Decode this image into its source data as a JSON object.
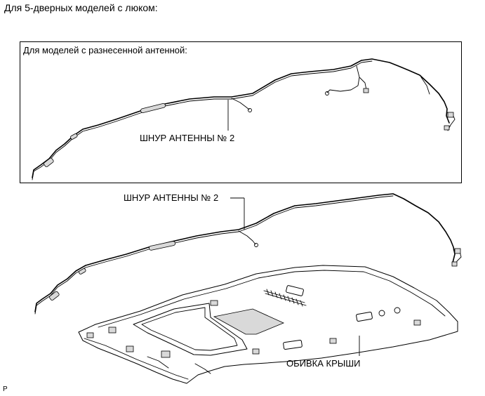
{
  "heading": "Для 5-дверных моделей с люком:",
  "inset": {
    "title": "Для моделей с разнесенной антенной:",
    "cord_label": "ШНУР АНТЕННЫ № 2"
  },
  "main": {
    "cord_label": "ШНУР АНТЕННЫ № 2",
    "roof_label": "ОБИВКА КРЫШИ"
  },
  "page_marker": "P"
}
